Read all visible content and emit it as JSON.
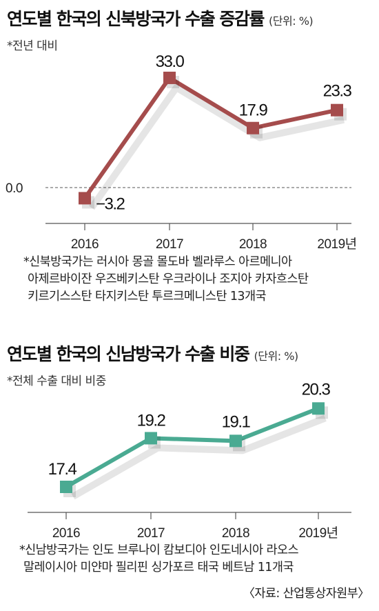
{
  "charts": [
    {
      "title": "연도별 한국의 신북방국가 수출 증감률",
      "unit": "(단위: %)",
      "subtitle": "*전년 대비",
      "note_lines": [
        "*신북방국가는 러시아 몽골 몰도바 벨라루스 아르메니아",
        "아제르바이잔 우즈베키스탄 우크라이나 조지아 카자흐스탄",
        "키르기스스탄 타지키스탄 투르크메니스탄 13개국"
      ]
    },
    {
      "title": "연도별 한국의 신남방국가 수출 비중",
      "unit": "(단위: %)",
      "subtitle": "*전체 수출 대비 비중",
      "note_lines": [
        "*신남방국가는 인도 브루나이 캄보디아 인도네시아 라오스",
        "말레이시아 미얀마 필리핀 싱가포르 태국 베트남 11개국"
      ],
      "source": "〈자료: 산업통상자원부〉"
    }
  ],
  "chart_data": [
    {
      "type": "line",
      "categories": [
        "2016",
        "2017",
        "2018",
        "2019년"
      ],
      "values": [
        -3.2,
        33.0,
        17.9,
        23.3
      ],
      "value_labels": [
        "−3.2",
        "33.0",
        "17.9",
        "23.3"
      ],
      "title": "연도별 한국의 신북방국가 수출 증감률",
      "ylabel": "",
      "reference_line": {
        "value": 0.0,
        "label": "0.0",
        "style": "dashed"
      },
      "color": "#a54c4c",
      "grid": false
    },
    {
      "type": "line",
      "categories": [
        "2016",
        "2017",
        "2018",
        "2019년"
      ],
      "values": [
        17.4,
        19.2,
        19.1,
        20.3
      ],
      "value_labels": [
        "17.4",
        "19.2",
        "19.1",
        "20.3"
      ],
      "title": "연도별 한국의 신남방국가 수출 비중",
      "ylabel": "",
      "color": "#4aaa92",
      "grid": false
    }
  ]
}
